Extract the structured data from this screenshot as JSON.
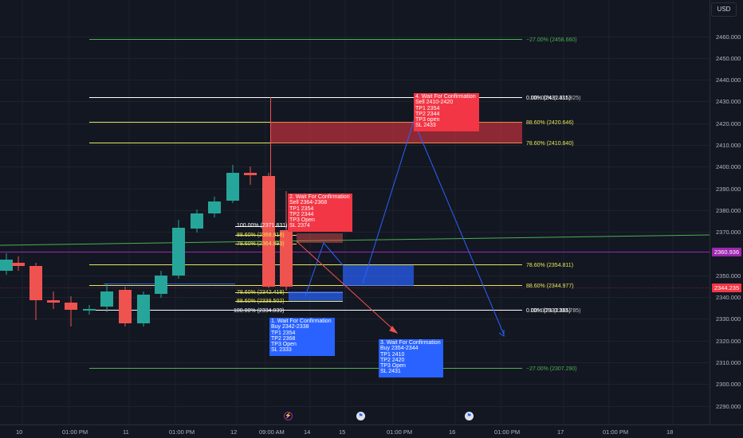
{
  "toolbar": {
    "currency": "USD"
  },
  "price_axis": {
    "labels": [
      "2460.000",
      "2450.000",
      "2440.000",
      "2430.000",
      "2420.000",
      "2410.000",
      "2400.000",
      "2390.000",
      "2380.000",
      "2370.000",
      "2350.000",
      "2340.000",
      "2330.000",
      "2320.000",
      "2310.000",
      "2300.000",
      "2290.000"
    ],
    "current_price": {
      "text": "2360.936",
      "color": "#9c27b0"
    },
    "last_price": {
      "text": "2344.235",
      "color": "#f23645"
    }
  },
  "time_axis": [
    "10",
    "01:00 PM",
    "11",
    "01:00 PM",
    "12",
    "09:00 AM",
    "14",
    "15",
    "01:00 PM",
    "16",
    "01:00 PM",
    "17",
    "01:00 PM",
    "18"
  ],
  "fib_labels": {
    "top_ext": "−27.00% (2458.660)",
    "upper_100": "0.00% (2431.315)",
    "upper_100_b": "100.00% (2431.825)",
    "upper_886": "88.60% (2420.646)",
    "upper_786": "78.60% (2410.840)",
    "mid_100": "100.00% (2371.831)",
    "mid_886": "88.60% (2368.818)",
    "mid_786": "78.60% (2364.893)",
    "low_786_right": "78.60% (2354.811)",
    "low_886_right": "88.60% (2344.977)",
    "low_786_left": "78.60% (2342.418)",
    "low_886_left": "88.60% (2338.502)",
    "low_100_left": "100.00% (2334.039)",
    "low_0_right": "0.00% (2333.365)",
    "low_0_right_b": "100.00% (2333.785)",
    "bottom_ext": "−27.00% (2307.290)"
  },
  "annotations": [
    {
      "id": "1",
      "lines": [
        "1. Wait For Confirmation",
        "Buy 2342-2338",
        "TP1 2354",
        "TP2 2368",
        "TP3 Open",
        "SL 2333"
      ]
    },
    {
      "id": "2",
      "lines": [
        "2. Wait For Confirmation",
        "Sell 2364-2368",
        "TP1 2354",
        "TP2 2344",
        "TP3 Open",
        "SL 2374"
      ]
    },
    {
      "id": "3",
      "lines": [
        "3. Wait For Confirmation",
        "Buy 2354-2344",
        "TP1 2410",
        "TP2 2420",
        "TP3 Open",
        "SL 2431"
      ]
    },
    {
      "id": "4",
      "lines": [
        "4. Wait For Confirmation",
        "Sell 2410-2420",
        "TP1 2354",
        "TP2 2344",
        "TP3 open",
        "SL 2433"
      ]
    }
  ],
  "events": [
    "lightning-icon",
    "us-flag-icon",
    "us-flag-icon"
  ],
  "colors": {
    "bull": "#26a69a",
    "bear": "#ef5350",
    "blue_box": "#2962ff",
    "red_box": "#f23645",
    "fib_green": "#4caf50",
    "fib_yellow": "#e6e65a",
    "fib_white": "#ffffff"
  }
}
